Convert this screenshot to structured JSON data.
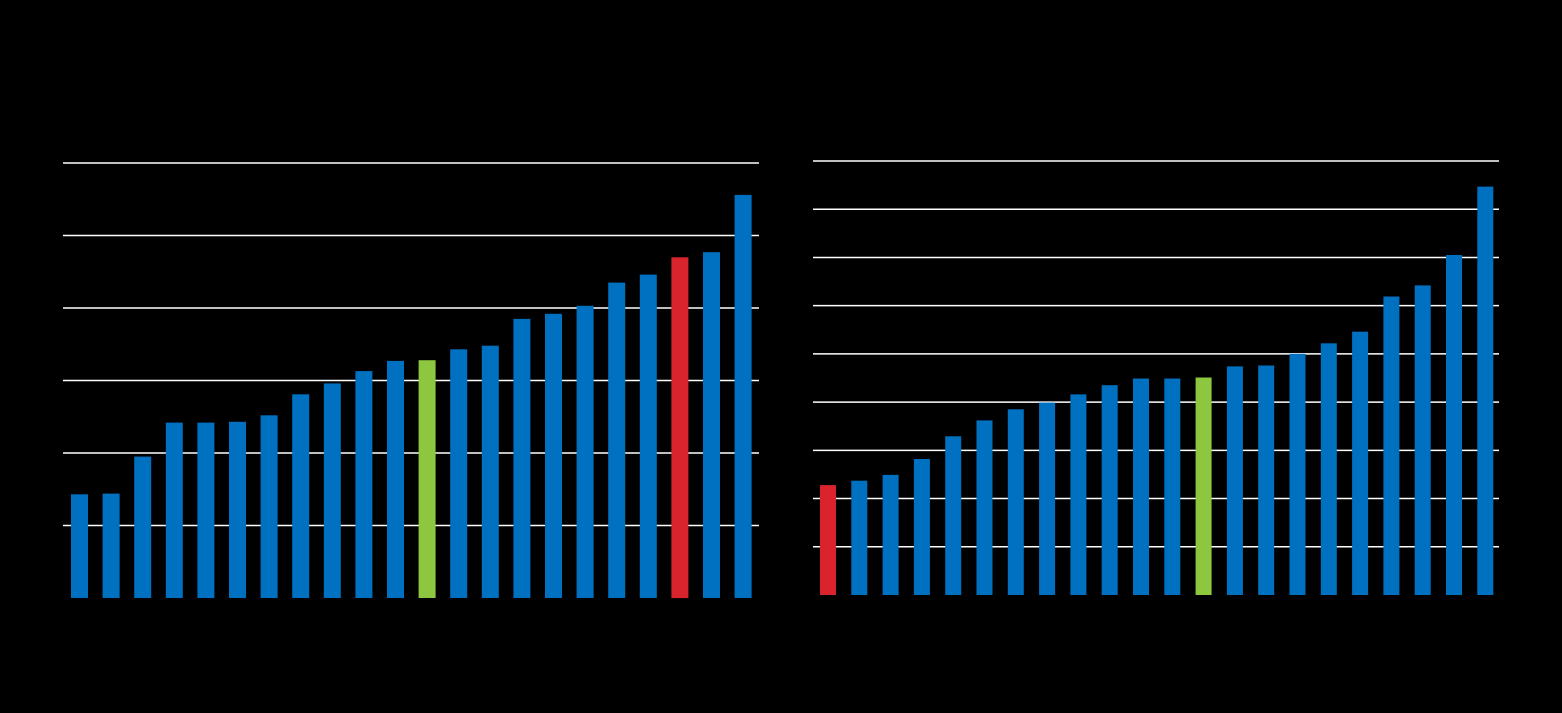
{
  "theme": {
    "background": "#000000",
    "gridline_color": "#ffffff",
    "bar_color": "#0070c0",
    "highlight_green": "#8dc63f",
    "highlight_red": "#d9232d"
  },
  "chart_data": [
    {
      "type": "bar",
      "title": "",
      "xlabel": "",
      "ylabel": "",
      "grid": true,
      "ylim": [
        0,
        6
      ],
      "gridlines": [
        1,
        2,
        3,
        4,
        5,
        6
      ],
      "categories": [
        "",
        "",
        "",
        "",
        "",
        "",
        "",
        "",
        "",
        "",
        "",
        "",
        "",
        "",
        "",
        "",
        "",
        "",
        "",
        "",
        "",
        ""
      ],
      "values": [
        1.43,
        1.44,
        1.95,
        2.42,
        2.42,
        2.43,
        2.52,
        2.81,
        2.96,
        3.13,
        3.27,
        3.28,
        3.43,
        3.48,
        3.85,
        3.92,
        4.03,
        4.35,
        4.46,
        4.7,
        4.77,
        5.56
      ],
      "highlights": [
        {
          "index": 11,
          "color": "green"
        },
        {
          "index": 19,
          "color": "red"
        }
      ]
    },
    {
      "type": "bar",
      "title": "",
      "xlabel": "",
      "ylabel": "",
      "grid": true,
      "ylim": [
        0,
        9
      ],
      "gridlines": [
        1,
        2,
        3,
        4,
        5,
        6,
        7,
        8,
        9
      ],
      "categories": [
        "",
        "",
        "",
        "",
        "",
        "",
        "",
        "",
        "",
        "",
        "",
        "",
        "",
        "",
        "",
        "",
        "",
        "",
        "",
        "",
        "",
        ""
      ],
      "values": [
        2.28,
        2.37,
        2.49,
        2.82,
        3.29,
        3.62,
        3.85,
        3.99,
        4.16,
        4.35,
        4.49,
        4.49,
        4.51,
        4.74,
        4.76,
        5.0,
        5.22,
        5.46,
        6.19,
        6.42,
        7.05,
        8.47
      ],
      "highlights": [
        {
          "index": 0,
          "color": "red"
        },
        {
          "index": 12,
          "color": "green"
        }
      ]
    }
  ]
}
